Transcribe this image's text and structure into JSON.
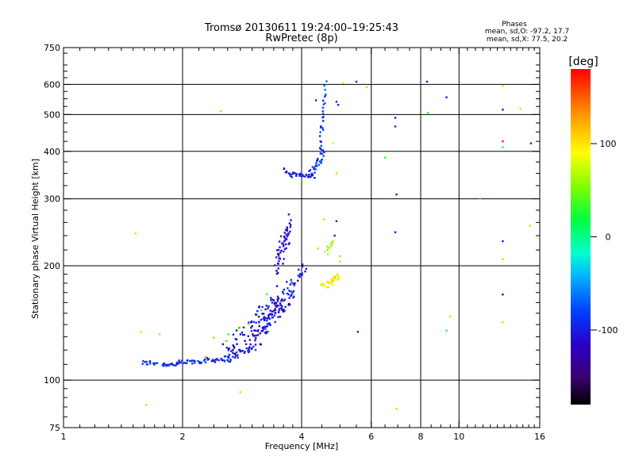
{
  "chart_data": {
    "type": "scatter",
    "title": "Tromsø 20130611 19:24:00–19:25:43",
    "subtitle": "RwPretec (8p)",
    "xlabel": "Frequency [MHz]",
    "ylabel": "Stationary phase Virtual Height [km]",
    "x_scale": "log",
    "y_scale": "log",
    "xlim": [
      1,
      16
    ],
    "ylim": [
      75,
      750
    ],
    "x_major_ticks": [
      1,
      2,
      4,
      6,
      8,
      10,
      16
    ],
    "y_major_ticks": [
      75,
      100,
      200,
      300,
      400,
      500,
      600,
      750
    ],
    "grid": true,
    "stats_block": {
      "title": "Phases",
      "line1": "mean, sd,O:  -97.2, 17.7",
      "line2": "mean, sd,X:  77.5, 20.2"
    },
    "colorbar": {
      "label": "[deg]",
      "range": [
        -180,
        180
      ],
      "ticks": [
        100,
        0,
        -100
      ],
      "colormap": "rainbow"
    },
    "segments": [
      {
        "x0": 1.58,
        "x1": 1.72,
        "y0": 111,
        "y1": 111,
        "n": 14,
        "jx": 0.01,
        "jy": 0.015,
        "phase": -90
      },
      {
        "x0": 1.77,
        "x1": 1.95,
        "y0": 110,
        "y1": 110,
        "n": 18,
        "jx": 0.01,
        "jy": 0.012,
        "phase": -92
      },
      {
        "x0": 1.95,
        "x1": 2.6,
        "y0": 111,
        "y1": 114,
        "n": 45,
        "jx": 0.01,
        "jy": 0.015,
        "phase": -95
      },
      {
        "x0": 2.6,
        "x1": 3.0,
        "y0": 114,
        "y1": 122,
        "n": 30,
        "jx": 0.012,
        "jy": 0.025,
        "phase": -98
      },
      {
        "x0": 2.55,
        "x1": 3.2,
        "y0": 118,
        "y1": 150,
        "n": 45,
        "jx": 0.025,
        "jy": 0.07,
        "phase": -105
      },
      {
        "x0": 3.0,
        "x1": 3.55,
        "y0": 125,
        "y1": 168,
        "n": 70,
        "jx": 0.025,
        "jy": 0.07,
        "phase": -110
      },
      {
        "x0": 3.2,
        "x1": 3.85,
        "y0": 140,
        "y1": 170,
        "n": 55,
        "jx": 0.015,
        "jy": 0.05,
        "phase": -100
      },
      {
        "x0": 3.45,
        "x1": 3.75,
        "y0": 200,
        "y1": 255,
        "n": 55,
        "jx": 0.012,
        "jy": 0.08,
        "phase": -110
      },
      {
        "x0": 3.7,
        "x1": 4.1,
        "y0": 175,
        "y1": 200,
        "n": 20,
        "jx": 0.015,
        "jy": 0.04,
        "phase": -95
      },
      {
        "x0": 3.8,
        "x1": 4.3,
        "y0": 348,
        "y1": 342,
        "n": 25,
        "jx": 0.01,
        "jy": 0.012,
        "phase": -95
      },
      {
        "x0": 4.2,
        "x1": 4.55,
        "y0": 345,
        "y1": 400,
        "n": 30,
        "jx": 0.01,
        "jy": 0.03,
        "phase": -90
      },
      {
        "x0": 4.45,
        "x1": 4.6,
        "y0": 400,
        "y1": 600,
        "n": 30,
        "jx": 0.006,
        "jy": 0.04,
        "phase": -85
      },
      {
        "x0": 3.6,
        "x1": 3.8,
        "y0": 358,
        "y1": 345,
        "n": 10,
        "jx": 0.008,
        "jy": 0.012,
        "phase": -100
      },
      {
        "x0": 4.5,
        "x1": 5.0,
        "y0": 175,
        "y1": 188,
        "n": 30,
        "jx": 0.012,
        "jy": 0.02,
        "phase": 95
      },
      {
        "x0": 4.6,
        "x1": 4.8,
        "y0": 215,
        "y1": 230,
        "n": 10,
        "jx": 0.01,
        "jy": 0.03,
        "phase": 60
      },
      {
        "x0": 2.3,
        "x1": 3.3,
        "y0": 118,
        "y1": 160,
        "n": 8,
        "jx": 0.04,
        "jy": 0.06,
        "phase": 40
      }
    ],
    "points": [
      {
        "x": 1.52,
        "y": 243,
        "phase": 110
      },
      {
        "x": 1.62,
        "y": 86,
        "phase": 110
      },
      {
        "x": 1.57,
        "y": 134,
        "phase": 110
      },
      {
        "x": 1.75,
        "y": 132,
        "phase": 110
      },
      {
        "x": 2.5,
        "y": 510,
        "phase": 110
      },
      {
        "x": 2.8,
        "y": 93,
        "phase": 110
      },
      {
        "x": 4.9,
        "y": 540,
        "phase": -90
      },
      {
        "x": 4.95,
        "y": 530,
        "phase": -90
      },
      {
        "x": 5.1,
        "y": 605,
        "phase": 110
      },
      {
        "x": 5.5,
        "y": 610,
        "phase": -100
      },
      {
        "x": 5.85,
        "y": 590,
        "phase": 110
      },
      {
        "x": 4.8,
        "y": 420,
        "phase": 80
      },
      {
        "x": 4.9,
        "y": 350,
        "phase": 110
      },
      {
        "x": 4.9,
        "y": 262,
        "phase": -100
      },
      {
        "x": 4.85,
        "y": 240,
        "phase": -100
      },
      {
        "x": 5.55,
        "y": 134,
        "phase": -100
      },
      {
        "x": 6.5,
        "y": 385,
        "phase": 30
      },
      {
        "x": 6.9,
        "y": 490,
        "phase": -100
      },
      {
        "x": 6.9,
        "y": 465,
        "phase": -100
      },
      {
        "x": 6.95,
        "y": 308,
        "phase": -100
      },
      {
        "x": 6.9,
        "y": 245,
        "phase": -100
      },
      {
        "x": 6.95,
        "y": 84,
        "phase": 110
      },
      {
        "x": 8.3,
        "y": 610,
        "phase": -100
      },
      {
        "x": 8.35,
        "y": 505,
        "phase": 30
      },
      {
        "x": 9.3,
        "y": 555,
        "phase": -100
      },
      {
        "x": 9.5,
        "y": 147,
        "phase": 110
      },
      {
        "x": 9.3,
        "y": 135,
        "phase": 30
      },
      {
        "x": 11.3,
        "y": 300,
        "phase": 30
      },
      {
        "x": 12.9,
        "y": 595,
        "phase": 110
      },
      {
        "x": 12.9,
        "y": 515,
        "phase": -100
      },
      {
        "x": 12.9,
        "y": 425,
        "phase": 170
      },
      {
        "x": 12.9,
        "y": 410,
        "phase": 30
      },
      {
        "x": 12.9,
        "y": 232,
        "phase": -100
      },
      {
        "x": 12.9,
        "y": 208,
        "phase": 110
      },
      {
        "x": 12.9,
        "y": 168,
        "phase": -100
      },
      {
        "x": 12.9,
        "y": 142,
        "phase": 110
      },
      {
        "x": 14.3,
        "y": 518,
        "phase": 110
      },
      {
        "x": 15.2,
        "y": 420,
        "phase": -100
      },
      {
        "x": 15.1,
        "y": 255,
        "phase": 110
      },
      {
        "x": 4.35,
        "y": 545,
        "phase": -100
      },
      {
        "x": 4.4,
        "y": 222,
        "phase": 110
      },
      {
        "x": 4.55,
        "y": 265,
        "phase": 110
      },
      {
        "x": 5.0,
        "y": 212,
        "phase": 110
      },
      {
        "x": 5.0,
        "y": 205,
        "phase": 110
      }
    ]
  }
}
